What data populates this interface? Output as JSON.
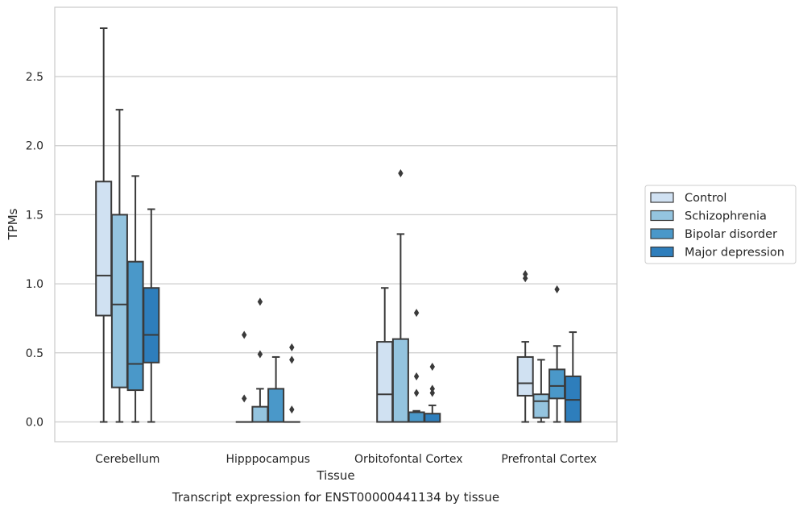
{
  "chart_data": {
    "type": "box",
    "xlabel": "Tissue",
    "ylabel": "TPMs",
    "caption": "Transcript expression for ENST00000441134 by tissue",
    "ylim": [
      -0.14,
      2.99
    ],
    "yticks": [
      "0.0",
      "0.5",
      "1.0",
      "1.5",
      "2.0",
      "2.5"
    ],
    "grid": "horizontal",
    "legend_position": "right",
    "categories": [
      "Cerebellum",
      "Hipppocampus",
      "Orbitofontal Cortex",
      "Prefrontal Cortex"
    ],
    "series": [
      {
        "name": "Control",
        "color": "#d0e1f2",
        "boxes": [
          {
            "whislo": 0.0,
            "q1": 0.77,
            "med": 1.06,
            "q3": 1.74,
            "whishi": 2.85,
            "fliers": []
          },
          {
            "whislo": 0.0,
            "q1": 0.0,
            "med": 0.0,
            "q3": 0.0,
            "whishi": 0.0,
            "fliers": [
              0.17,
              0.63
            ]
          },
          {
            "whislo": 0.0,
            "q1": 0.0,
            "med": 0.2,
            "q3": 0.58,
            "whishi": 0.97,
            "fliers": []
          },
          {
            "whislo": 0.0,
            "q1": 0.19,
            "med": 0.28,
            "q3": 0.47,
            "whishi": 0.58,
            "fliers": [
              1.04,
              1.07
            ]
          }
        ]
      },
      {
        "name": "Schizophrenia",
        "color": "#94c4df",
        "boxes": [
          {
            "whislo": 0.0,
            "q1": 0.25,
            "med": 0.85,
            "q3": 1.5,
            "whishi": 2.26,
            "fliers": []
          },
          {
            "whislo": 0.0,
            "q1": 0.0,
            "med": 0.0,
            "q3": 0.11,
            "whishi": 0.24,
            "fliers": [
              0.49,
              0.87
            ]
          },
          {
            "whislo": 0.0,
            "q1": 0.0,
            "med": 0.0,
            "q3": 0.6,
            "whishi": 1.36,
            "fliers": [
              1.8
            ]
          },
          {
            "whislo": 0.0,
            "q1": 0.03,
            "med": 0.15,
            "q3": 0.2,
            "whishi": 0.45,
            "fliers": []
          }
        ]
      },
      {
        "name": "Bipolar disorder",
        "color": "#4a98c9",
        "boxes": [
          {
            "whislo": 0.0,
            "q1": 0.23,
            "med": 0.42,
            "q3": 1.16,
            "whishi": 1.78,
            "fliers": []
          },
          {
            "whislo": 0.0,
            "q1": 0.0,
            "med": 0.0,
            "q3": 0.24,
            "whishi": 0.47,
            "fliers": []
          },
          {
            "whislo": 0.0,
            "q1": 0.0,
            "med": 0.0,
            "q3": 0.07,
            "whishi": 0.08,
            "fliers": [
              0.21,
              0.33,
              0.79
            ]
          },
          {
            "whislo": 0.0,
            "q1": 0.17,
            "med": 0.26,
            "q3": 0.38,
            "whishi": 0.55,
            "fliers": [
              0.96
            ]
          }
        ]
      },
      {
        "name": "Major depression",
        "color": "#2e7ebc",
        "boxes": [
          {
            "whislo": 0.0,
            "q1": 0.43,
            "med": 0.63,
            "q3": 0.97,
            "whishi": 1.54,
            "fliers": []
          },
          {
            "whislo": 0.0,
            "q1": 0.0,
            "med": 0.0,
            "q3": 0.0,
            "whishi": 0.0,
            "fliers": [
              0.09,
              0.45,
              0.54
            ]
          },
          {
            "whislo": 0.0,
            "q1": 0.0,
            "med": 0.0,
            "q3": 0.06,
            "whishi": 0.12,
            "fliers": [
              0.21,
              0.24,
              0.4
            ]
          },
          {
            "whislo": 0.0,
            "q1": 0.0,
            "med": 0.16,
            "q3": 0.33,
            "whishi": 0.65,
            "fliers": []
          }
        ]
      }
    ]
  }
}
